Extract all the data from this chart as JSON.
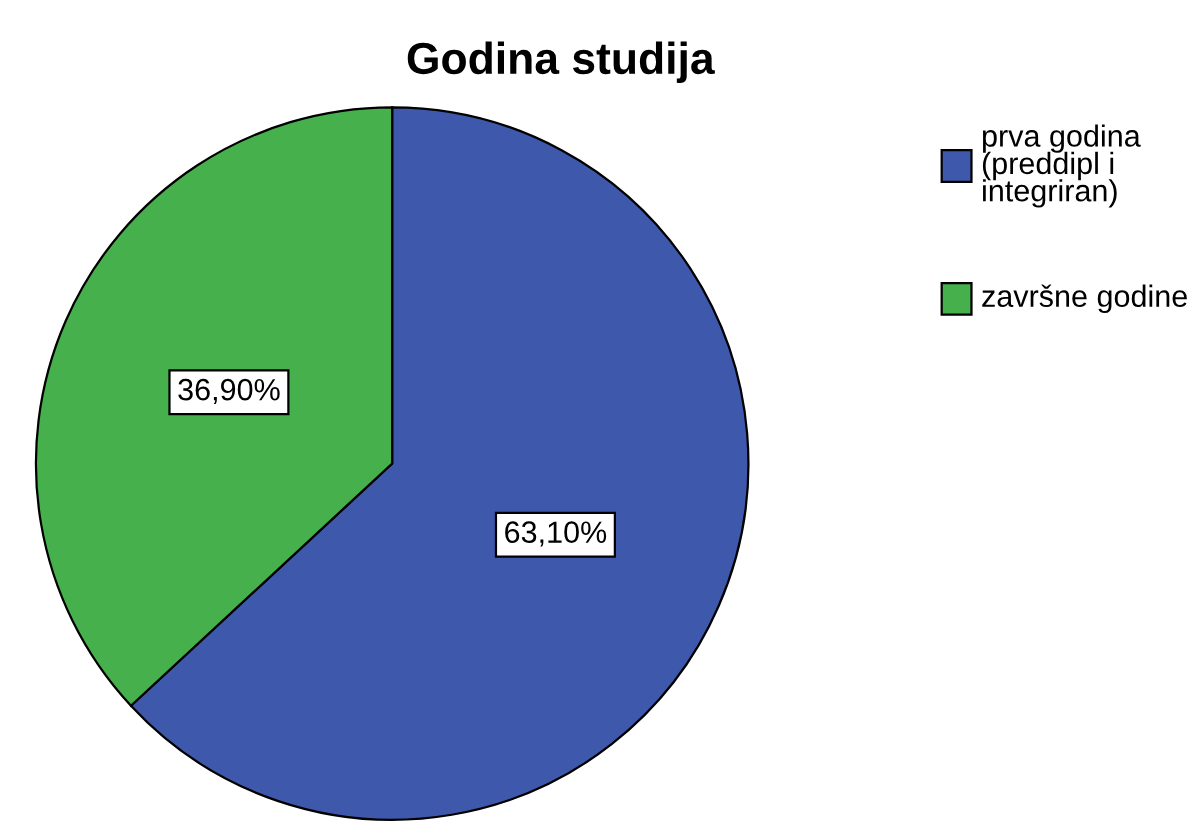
{
  "chart_data": {
    "type": "pie",
    "title": "Godina studija",
    "categories": [
      "prva godina (preddipl i integriran)",
      "završne godine"
    ],
    "values": [
      63.1,
      36.9
    ],
    "value_labels": [
      "63,10%",
      "36,90%"
    ],
    "colors": [
      "#3e58ac",
      "#46b14c"
    ],
    "legend": "right"
  }
}
